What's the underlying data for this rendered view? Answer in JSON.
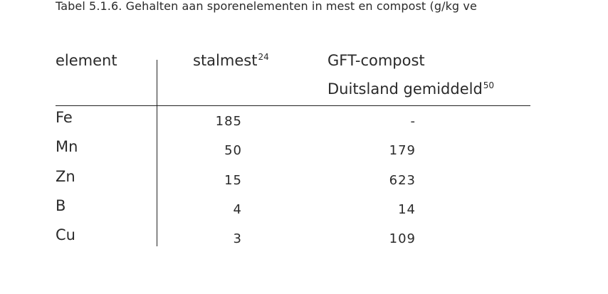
{
  "caption": "Tabel 5.1.6. Gehalten aan sporenelementen in mest en compost (g/kg ve",
  "table": {
    "headers": {
      "element": "element",
      "stalmest": "stalmest",
      "stalmest_ref": "24",
      "gft_line1": "GFT-compost",
      "gft_line2": "Duitsland gemiddeld",
      "gft_ref": "50"
    },
    "rows": [
      {
        "element": "Fe",
        "stalmest": "185",
        "gft": "-"
      },
      {
        "element": "Mn",
        "stalmest": "50",
        "gft": "179"
      },
      {
        "element": "Zn",
        "stalmest": "15",
        "gft": "623"
      },
      {
        "element": "B",
        "stalmest": "4",
        "gft": "14"
      },
      {
        "element": "Cu",
        "stalmest": "3",
        "gft": "109"
      }
    ]
  }
}
